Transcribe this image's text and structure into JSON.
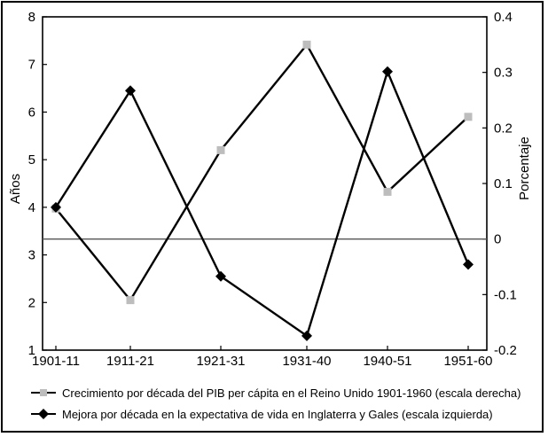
{
  "chart_data": {
    "type": "line",
    "categories": [
      "1901-11",
      "1911-21",
      "1921-31",
      "1931-40",
      "1940-51",
      "1951-60"
    ],
    "y_left_label": "Años",
    "y_right_label": "Porcentaje",
    "y_left_ticks": [
      "1",
      "2",
      "3",
      "4",
      "5",
      "6",
      "7",
      "8"
    ],
    "y_right_ticks": [
      "0.4",
      "0.3",
      "0.2",
      "0.1",
      "0",
      "-0.1",
      "-0.2"
    ],
    "ylim_left": [
      1,
      8
    ],
    "ylim_right": [
      -0.2,
      0.4
    ],
    "series": [
      {
        "name": "Crecimiento por década del PIB per cápita en el Reino Unido 1901-1960 (escala derecha)",
        "axis": "right",
        "marker": "square",
        "marker_color": "#bdbdbd",
        "values": [
          0.055,
          -0.11,
          0.16,
          0.35,
          0.085,
          0.22
        ]
      },
      {
        "name": "Mejora por década en la expectativa de vida en Inglaterra y Gales  (escala izquierda)",
        "axis": "left",
        "marker": "diamond",
        "marker_color": "#000000",
        "values": [
          4.0,
          6.45,
          2.55,
          1.3,
          6.85,
          2.8
        ]
      }
    ],
    "zero_line_right": 0
  }
}
